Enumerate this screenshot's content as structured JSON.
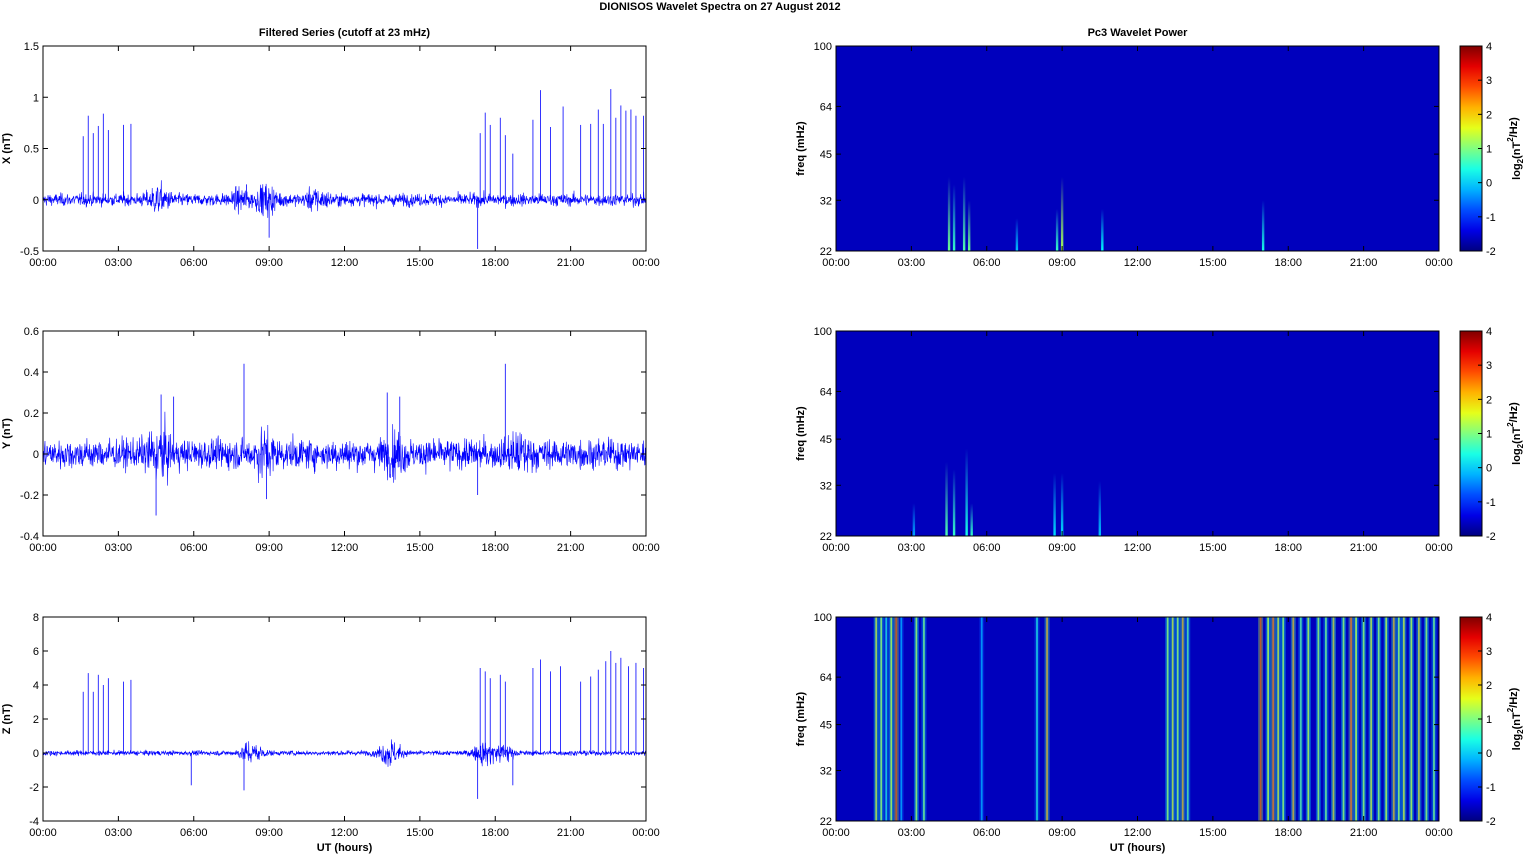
{
  "suptitle": "DIONISOS Wavelet Spectra on 27 August    2012",
  "chart_data": [
    {
      "type": "line",
      "title": "Filtered Series (cutoff at 23 mHz)",
      "xlabel": "",
      "ylabel": "X (nT)",
      "xticks": [
        "00:00",
        "03:00",
        "06:00",
        "09:00",
        "12:00",
        "15:00",
        "18:00",
        "21:00",
        "00:00"
      ],
      "xlim_hours": [
        0,
        24
      ],
      "ylim": [
        -0.5,
        1.5
      ],
      "yticks": [
        -0.5,
        0,
        0.5,
        1,
        1.5
      ],
      "ytick_labels": [
        "-0.5",
        "0",
        "0.5",
        "1",
        "1.5"
      ],
      "line_color": "#0000ff",
      "noise_level": 0.05,
      "bursts": [
        [
          4.6,
          0.08
        ],
        [
          8.9,
          0.09
        ],
        [
          10.9,
          0.06
        ],
        [
          7.9,
          0.05
        ]
      ],
      "spikes": [
        [
          1.6,
          0.62
        ],
        [
          1.8,
          0.82
        ],
        [
          2.0,
          0.65
        ],
        [
          2.2,
          0.72
        ],
        [
          2.4,
          0.84
        ],
        [
          2.6,
          0.68
        ],
        [
          3.2,
          0.73
        ],
        [
          3.5,
          0.74
        ],
        [
          8.1,
          0.15
        ],
        [
          9.0,
          -0.37
        ],
        [
          17.4,
          0.65
        ],
        [
          17.6,
          0.85
        ],
        [
          17.8,
          0.73
        ],
        [
          18.2,
          0.8
        ],
        [
          18.4,
          0.63
        ],
        [
          18.7,
          0.45
        ],
        [
          19.5,
          0.78
        ],
        [
          19.8,
          1.07
        ],
        [
          20.2,
          0.71
        ],
        [
          20.7,
          0.91
        ],
        [
          21.4,
          0.73
        ],
        [
          21.8,
          0.74
        ],
        [
          22.1,
          0.88
        ],
        [
          22.3,
          0.74
        ],
        [
          22.6,
          1.08
        ],
        [
          22.8,
          0.8
        ],
        [
          23.0,
          0.92
        ],
        [
          23.2,
          0.87
        ],
        [
          23.4,
          0.88
        ],
        [
          23.6,
          0.82
        ],
        [
          23.9,
          0.82
        ],
        [
          17.3,
          -0.48
        ]
      ]
    },
    {
      "type": "line",
      "title": "",
      "xlabel": "",
      "ylabel": "Y (nT)",
      "xticks": [
        "00:00",
        "03:00",
        "06:00",
        "09:00",
        "12:00",
        "15:00",
        "18:00",
        "21:00",
        "00:00"
      ],
      "xlim_hours": [
        0,
        24
      ],
      "ylim": [
        -0.4,
        0.6
      ],
      "yticks": [
        -0.4,
        -0.2,
        0,
        0.2,
        0.4,
        0.6
      ],
      "ytick_labels": [
        "-0.4",
        "-0.2",
        "0",
        "0.2",
        "0.4",
        "0.6"
      ],
      "line_color": "#0000ff",
      "noise_level": 0.06,
      "bursts": [
        [
          4.6,
          0.07
        ],
        [
          8.8,
          0.05
        ],
        [
          14.0,
          0.04
        ],
        [
          19.0,
          0.04
        ]
      ],
      "spikes": [
        [
          4.5,
          -0.3
        ],
        [
          4.7,
          0.29
        ],
        [
          5.2,
          0.28
        ],
        [
          8.0,
          0.44
        ],
        [
          8.9,
          -0.22
        ],
        [
          13.7,
          0.3
        ],
        [
          14.2,
          0.28
        ],
        [
          18.4,
          0.44
        ],
        [
          17.3,
          -0.2
        ]
      ]
    },
    {
      "type": "line",
      "title": "",
      "xlabel": "UT (hours)",
      "ylabel": "Z (nT)",
      "xticks": [
        "00:00",
        "03:00",
        "06:00",
        "09:00",
        "12:00",
        "15:00",
        "18:00",
        "21:00",
        "00:00"
      ],
      "xlim_hours": [
        0,
        24
      ],
      "ylim": [
        -4,
        8
      ],
      "yticks": [
        -4,
        -2,
        0,
        2,
        4,
        6,
        8
      ],
      "ytick_labels": [
        "-4",
        "-2",
        "0",
        "2",
        "4",
        "6",
        "8"
      ],
      "line_color": "#0000ff",
      "noise_level": 0.12,
      "bursts": [
        [
          8.3,
          0.5
        ],
        [
          13.8,
          0.6
        ],
        [
          17.6,
          0.5
        ],
        [
          18.3,
          0.4
        ]
      ],
      "spikes": [
        [
          1.6,
          3.6
        ],
        [
          1.8,
          4.7
        ],
        [
          2.0,
          3.6
        ],
        [
          2.2,
          4.6
        ],
        [
          2.4,
          4.0
        ],
        [
          2.6,
          4.4
        ],
        [
          3.2,
          4.2
        ],
        [
          3.5,
          4.3
        ],
        [
          5.9,
          -1.9
        ],
        [
          8.0,
          -2.2
        ],
        [
          17.4,
          5.0
        ],
        [
          17.6,
          4.8
        ],
        [
          17.8,
          4.4
        ],
        [
          18.2,
          4.6
        ],
        [
          18.4,
          4.2
        ],
        [
          18.7,
          -1.9
        ],
        [
          19.5,
          5.0
        ],
        [
          19.8,
          5.5
        ],
        [
          20.2,
          4.8
        ],
        [
          20.6,
          5.1
        ],
        [
          21.4,
          4.2
        ],
        [
          21.8,
          4.5
        ],
        [
          22.1,
          4.9
        ],
        [
          22.4,
          5.4
        ],
        [
          22.6,
          6.0
        ],
        [
          22.8,
          5.3
        ],
        [
          23.0,
          5.6
        ],
        [
          23.3,
          5.1
        ],
        [
          23.6,
          5.3
        ],
        [
          23.9,
          5.0
        ],
        [
          17.3,
          -2.7
        ]
      ]
    },
    {
      "type": "heatmap",
      "title": "Pc3 Wavelet Power",
      "xlabel": "",
      "ylabel": "freq (mHz)",
      "xticks": [
        "00:00",
        "03:00",
        "06:00",
        "09:00",
        "12:00",
        "15:00",
        "18:00",
        "21:00",
        "00:00"
      ],
      "xlim_hours": [
        0,
        24
      ],
      "ylim_mHz": [
        22,
        100
      ],
      "yscale": "log",
      "yticks": [
        22,
        32,
        45,
        64,
        100
      ],
      "ytick_labels": [
        "22",
        "32",
        "45",
        "64",
        "100"
      ],
      "colormap": "jet",
      "clim": [
        -2,
        4
      ],
      "colorbar_ticks": [
        "-2",
        "-1",
        "0",
        "1",
        "2",
        "3",
        "4"
      ],
      "colorbar_label_pre": "log",
      "colorbar_label_sub": "2",
      "colorbar_label_mid": "(nT",
      "colorbar_label_sup": "2",
      "colorbar_label_post": "/Hz)",
      "background_value": -2,
      "events": [
        [
          4.5,
          38,
          0.6
        ],
        [
          4.7,
          36,
          0.5
        ],
        [
          5.1,
          38,
          0.55
        ],
        [
          5.3,
          32,
          0.6
        ],
        [
          9.0,
          38,
          0.7
        ],
        [
          8.8,
          30,
          0.5
        ],
        [
          10.6,
          30,
          0.4
        ],
        [
          17.0,
          32,
          0.45
        ],
        [
          7.2,
          28,
          0.3
        ]
      ]
    },
    {
      "type": "heatmap",
      "title": "",
      "xlabel": "",
      "ylabel": "freq (mHz)",
      "xticks": [
        "00:00",
        "03:00",
        "06:00",
        "09:00",
        "12:00",
        "15:00",
        "18:00",
        "21:00",
        "00:00"
      ],
      "xlim_hours": [
        0,
        24
      ],
      "ylim_mHz": [
        22,
        100
      ],
      "yscale": "log",
      "yticks": [
        22,
        32,
        45,
        64,
        100
      ],
      "ytick_labels": [
        "22",
        "32",
        "45",
        "64",
        "100"
      ],
      "colormap": "jet",
      "clim": [
        -2,
        4
      ],
      "colorbar_ticks": [
        "-2",
        "-1",
        "0",
        "1",
        "2",
        "3",
        "4"
      ],
      "colorbar_label_pre": "log",
      "colorbar_label_sub": "2",
      "colorbar_label_mid": "(nT",
      "colorbar_label_sup": "2",
      "colorbar_label_post": "/Hz)",
      "background_value": -2,
      "events": [
        [
          4.4,
          38,
          0.55
        ],
        [
          4.7,
          36,
          0.5
        ],
        [
          5.2,
          42,
          0.45
        ],
        [
          5.4,
          28,
          0.5
        ],
        [
          8.7,
          35,
          0.35
        ],
        [
          9.0,
          35,
          0.35
        ],
        [
          10.5,
          33,
          0.3
        ],
        [
          3.1,
          28,
          0.25
        ]
      ]
    },
    {
      "type": "heatmap",
      "title": "",
      "xlabel": "UT (hours)",
      "ylabel": "freq (mHz)",
      "xticks": [
        "00:00",
        "03:00",
        "06:00",
        "09:00",
        "12:00",
        "15:00",
        "18:00",
        "21:00",
        "00:00"
      ],
      "xlim_hours": [
        0,
        24
      ],
      "ylim_mHz": [
        22,
        100
      ],
      "yscale": "log",
      "yticks": [
        22,
        32,
        45,
        64,
        100
      ],
      "ytick_labels": [
        "22",
        "32",
        "45",
        "64",
        "100"
      ],
      "colormap": "jet",
      "clim": [
        -2,
        4
      ],
      "colorbar_ticks": [
        "-2",
        "-1",
        "0",
        "1",
        "2",
        "3",
        "4"
      ],
      "colorbar_label_pre": "log",
      "colorbar_label_sub": "2",
      "colorbar_label_mid": "(nT",
      "colorbar_label_sup": "2",
      "colorbar_label_post": "/Hz)",
      "background_value": -2,
      "stripes": [
        [
          1.6,
          2.0
        ],
        [
          1.8,
          1.5
        ],
        [
          2.0,
          0.5
        ],
        [
          2.2,
          1.8
        ],
        [
          2.4,
          3.5
        ],
        [
          2.6,
          0.0
        ],
        [
          3.2,
          1.6
        ],
        [
          3.5,
          1.2
        ],
        [
          5.8,
          0.0
        ],
        [
          8.0,
          0.5
        ],
        [
          8.4,
          2.5
        ],
        [
          13.2,
          1.5
        ],
        [
          13.4,
          2.0
        ],
        [
          13.6,
          1.5
        ],
        [
          13.8,
          2.5
        ],
        [
          14.0,
          1.0
        ],
        [
          16.9,
          3.5
        ],
        [
          17.2,
          1.8
        ],
        [
          17.4,
          3.0
        ],
        [
          17.6,
          2.0
        ],
        [
          17.8,
          1.5
        ],
        [
          18.2,
          2.5
        ],
        [
          18.5,
          1.0
        ],
        [
          18.8,
          1.8
        ],
        [
          19.2,
          1.5
        ],
        [
          19.5,
          1.2
        ],
        [
          19.8,
          2.2
        ],
        [
          20.2,
          1.5
        ],
        [
          20.5,
          3.0
        ],
        [
          20.7,
          1.8
        ],
        [
          21.0,
          1.5
        ],
        [
          21.3,
          2.0
        ],
        [
          21.6,
          1.5
        ],
        [
          21.9,
          1.8
        ],
        [
          22.2,
          2.5
        ],
        [
          22.4,
          1.5
        ],
        [
          22.6,
          2.0
        ],
        [
          22.9,
          1.8
        ],
        [
          23.2,
          2.2
        ],
        [
          23.5,
          1.5
        ],
        [
          23.8,
          1.2
        ]
      ]
    }
  ]
}
